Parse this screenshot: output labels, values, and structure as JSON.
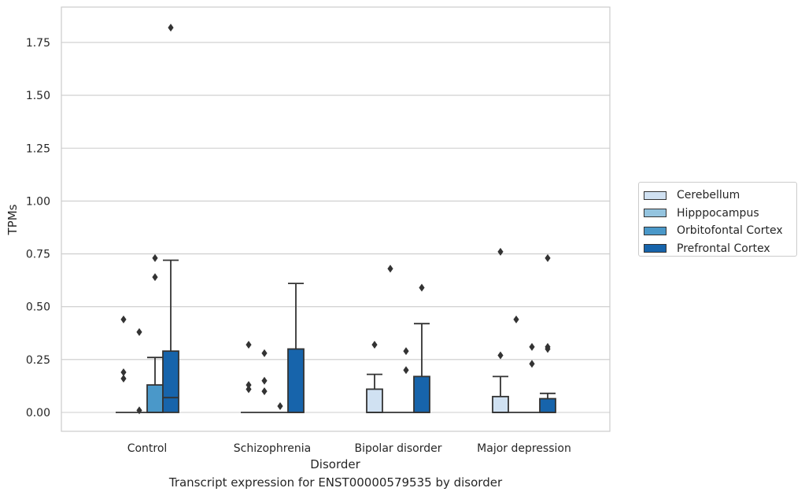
{
  "chart_data": {
    "type": "box",
    "caption": "Transcript expression for ENST00000579535 by disorder",
    "xlabel": "Disorder",
    "ylabel": "TPMs",
    "ylim": [
      -0.09,
      1.9
    ],
    "yticks": [
      "0.00",
      "0.25",
      "0.50",
      "0.75",
      "1.00",
      "1.25",
      "1.50",
      "1.75"
    ],
    "ytick_values": [
      0,
      0.25,
      0.5,
      0.75,
      1.0,
      1.25,
      1.5,
      1.75
    ],
    "grid": "horizontal",
    "legend_placement": "right, outside plot",
    "categories": [
      "Control",
      "Schizophrenia",
      "Bipolar disorder",
      "Major depression"
    ],
    "series": [
      {
        "name": "Cerebellum",
        "color": "#d0e1f2",
        "boxes": [
          {
            "category": "Control",
            "q1": 0,
            "median": 0,
            "q3": 0,
            "whisker_low": 0,
            "whisker_high": 0,
            "outliers": [
              0.44,
              0.19,
              0.16
            ]
          },
          {
            "category": "Schizophrenia",
            "q1": 0,
            "median": 0,
            "q3": 0,
            "whisker_low": 0,
            "whisker_high": 0,
            "outliers": [
              0.32,
              0.13,
              0.11
            ]
          },
          {
            "category": "Bipolar disorder",
            "q1": 0,
            "median": 0,
            "q3": 0.11,
            "whisker_low": 0,
            "whisker_high": 0.18,
            "outliers": [
              0.32
            ]
          },
          {
            "category": "Major depression",
            "q1": 0,
            "median": 0,
            "q3": 0.075,
            "whisker_low": 0,
            "whisker_high": 0.17,
            "outliers": [
              0.76,
              0.27
            ]
          }
        ]
      },
      {
        "name": "Hipppocampus",
        "color": "#94c4df",
        "boxes": [
          {
            "category": "Control",
            "q1": 0,
            "median": 0,
            "q3": 0,
            "whisker_low": 0,
            "whisker_high": 0,
            "outliers": [
              0.38,
              0.01
            ]
          },
          {
            "category": "Schizophrenia",
            "q1": 0,
            "median": 0,
            "q3": 0,
            "whisker_low": 0,
            "whisker_high": 0,
            "outliers": [
              0.28,
              0.15,
              0.1
            ]
          },
          {
            "category": "Bipolar disorder",
            "q1": 0,
            "median": 0,
            "q3": 0,
            "whisker_low": 0,
            "whisker_high": 0,
            "outliers": [
              0.68
            ]
          },
          {
            "category": "Major depression",
            "q1": 0,
            "median": 0,
            "q3": 0,
            "whisker_low": 0,
            "whisker_high": 0,
            "outliers": [
              0.44
            ]
          }
        ]
      },
      {
        "name": "Orbitofontal Cortex",
        "color": "#4a98c9",
        "boxes": [
          {
            "category": "Control",
            "q1": 0,
            "median": 0,
            "q3": 0.13,
            "whisker_low": 0,
            "whisker_high": 0.26,
            "outliers": [
              0.73,
              0.64
            ]
          },
          {
            "category": "Schizophrenia",
            "q1": 0,
            "median": 0,
            "q3": 0,
            "whisker_low": 0,
            "whisker_high": 0,
            "outliers": [
              0.03
            ]
          },
          {
            "category": "Bipolar disorder",
            "q1": 0,
            "median": 0,
            "q3": 0,
            "whisker_low": 0,
            "whisker_high": 0,
            "outliers": [
              0.29,
              0.2
            ]
          },
          {
            "category": "Major depression",
            "q1": 0,
            "median": 0,
            "q3": 0,
            "whisker_low": 0,
            "whisker_high": 0,
            "outliers": [
              0.31,
              0.23
            ]
          }
        ]
      },
      {
        "name": "Prefrontal Cortex",
        "color": "#1764ab",
        "boxes": [
          {
            "category": "Control",
            "q1": 0,
            "median": 0.07,
            "q3": 0.29,
            "whisker_low": 0,
            "whisker_high": 0.72,
            "outliers": [
              1.82
            ]
          },
          {
            "category": "Schizophrenia",
            "q1": 0,
            "median": 0,
            "q3": 0.3,
            "whisker_low": 0,
            "whisker_high": 0.61,
            "outliers": []
          },
          {
            "category": "Bipolar disorder",
            "q1": 0,
            "median": 0,
            "q3": 0.17,
            "whisker_low": 0,
            "whisker_high": 0.42,
            "outliers": [
              0.59
            ]
          },
          {
            "category": "Major depression",
            "q1": 0,
            "median": 0,
            "q3": 0.065,
            "whisker_low": 0,
            "whisker_high": 0.09,
            "outliers": [
              0.73,
              0.31,
              0.3
            ]
          }
        ]
      }
    ]
  }
}
